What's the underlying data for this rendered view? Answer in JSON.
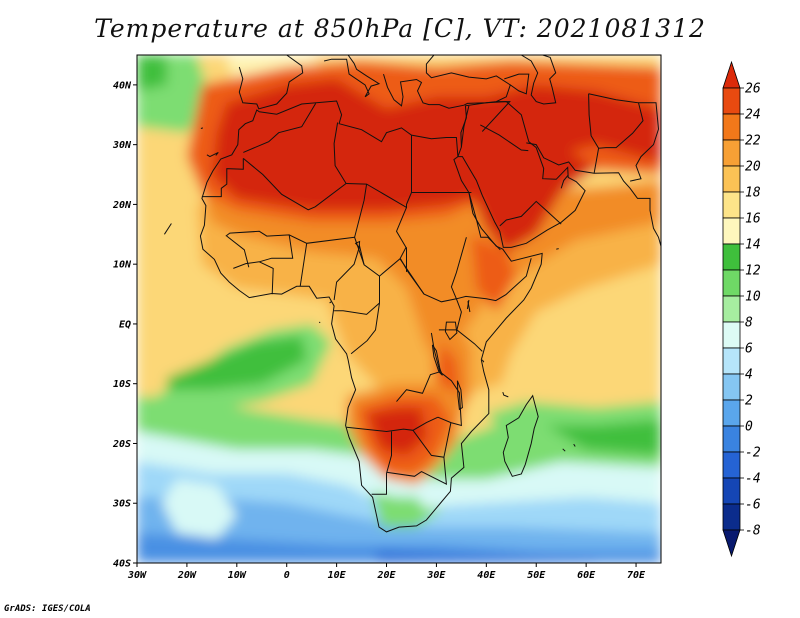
{
  "title": "Temperature at 850hPa [C], VT: 2021081312",
  "credit": "GrADS: IGES/COLA",
  "map": {
    "lon_ticks": [
      "30W",
      "20W",
      "10W",
      "0",
      "10E",
      "20E",
      "30E",
      "40E",
      "50E",
      "60E",
      "70E"
    ],
    "lat_ticks": [
      "40N",
      "30N",
      "20N",
      "10N",
      "EQ",
      "10S",
      "20S",
      "30S",
      "40S"
    ],
    "lon_range": [
      -30,
      75
    ],
    "lat_range": [
      -40,
      45
    ]
  },
  "colorbar": {
    "levels": [
      "26",
      "24",
      "22",
      "20",
      "18",
      "16",
      "14",
      "12",
      "10",
      "8",
      "6",
      "4",
      "2",
      "0",
      "-2",
      "-4",
      "-6",
      "-8"
    ],
    "colors": [
      "#dc2a0a",
      "#e84a10",
      "#f2781a",
      "#f7a035",
      "#fbc255",
      "#fde489",
      "#fef7bd",
      "#3fbf3c",
      "#6fd966",
      "#a6eda0",
      "#ddfbf5",
      "#b6e5fa",
      "#85c6f2",
      "#5aa6ec",
      "#3a83e0",
      "#2563d4",
      "#1546b5",
      "#0b2c8c",
      "#08196e"
    ]
  },
  "field_colors": {
    "hot": "#d42608",
    "warm": "#ed5c14",
    "orange": "#f28c28",
    "light_orange": "#f8b247",
    "yellow": "#fcd777",
    "pale": "#fef3b1",
    "green": "#3fbf3c",
    "light_green": "#7ddd72",
    "pale_green": "#b3efa8",
    "cyan": "#d8f9f6",
    "light_blue": "#9fd8f8",
    "blue": "#6fb3ee",
    "mid_blue": "#4a90e3",
    "deep_blue": "#2c6ed8",
    "navy": "#0b2c8c"
  }
}
